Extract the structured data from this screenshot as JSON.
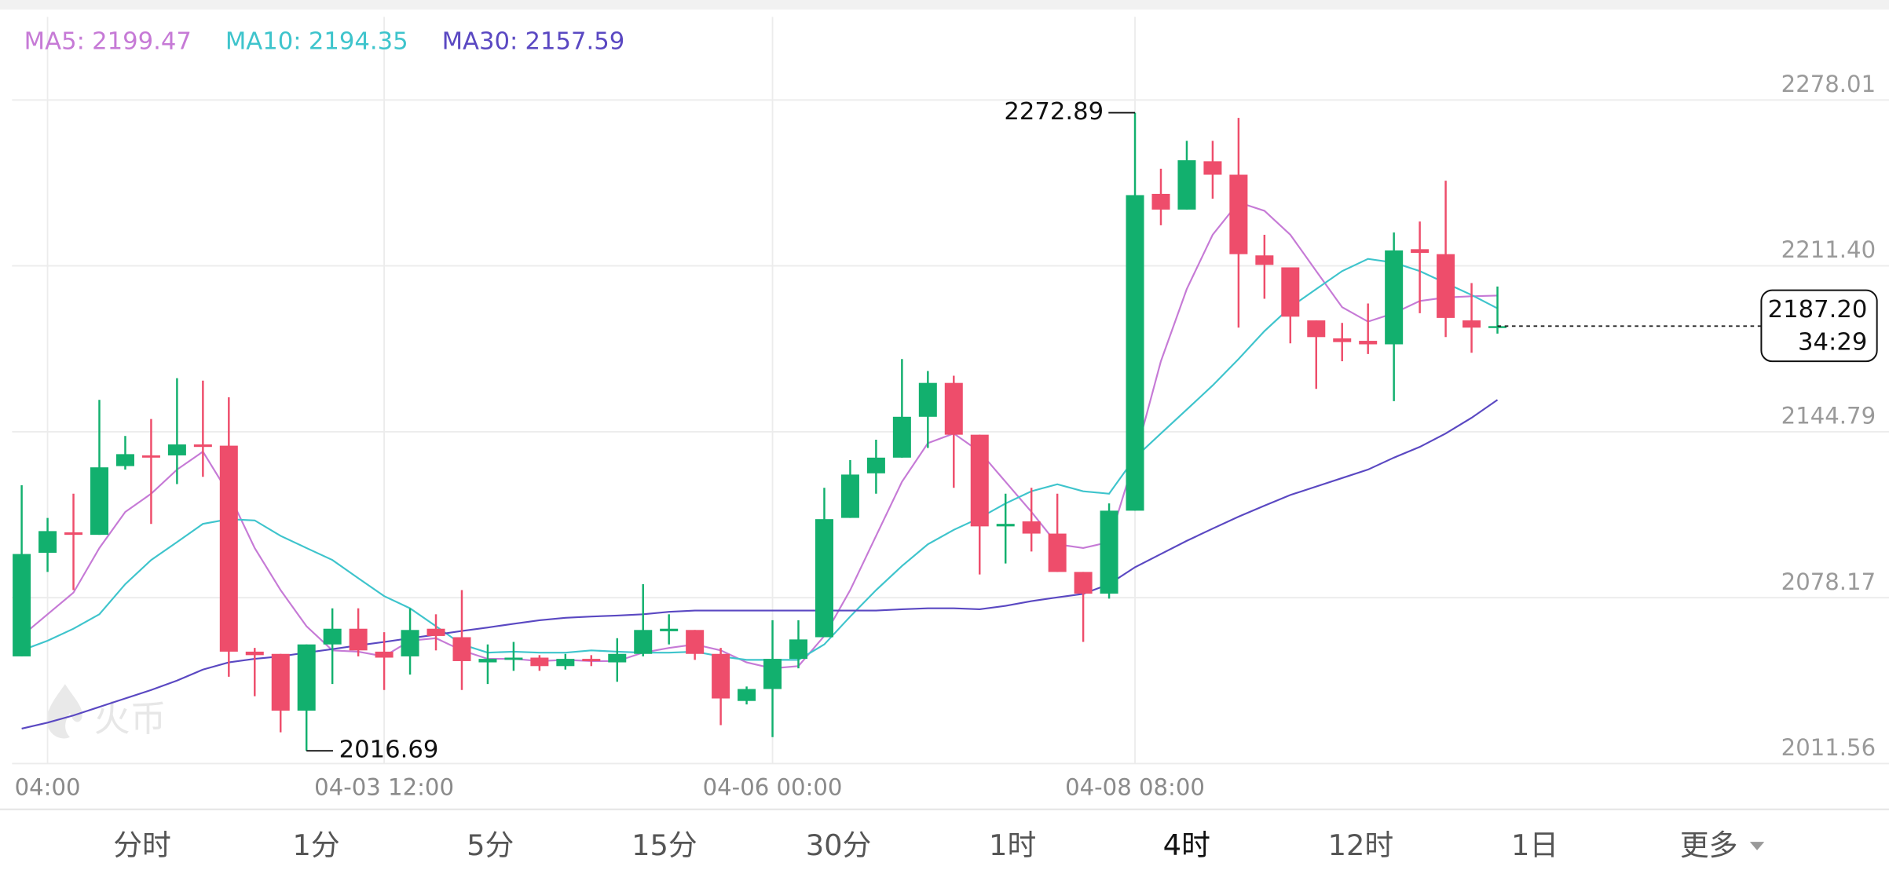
{
  "chart_data": {
    "type": "candlestick",
    "categories": [
      null,
      "04:00",
      null,
      null,
      null,
      null,
      null,
      null,
      null,
      null,
      null,
      null,
      null,
      null,
      "04-03 12:00",
      null,
      null,
      null,
      null,
      null,
      null,
      null,
      null,
      null,
      null,
      null,
      null,
      null,
      null,
      "04-06 00:00",
      null,
      null,
      null,
      null,
      null,
      null,
      null,
      null,
      null,
      null,
      null,
      null,
      null,
      "04-08 08:00",
      null,
      null,
      null,
      null,
      null,
      null,
      null,
      null,
      null,
      null,
      null,
      null,
      null,
      null
    ],
    "open": [
      2054.6,
      2096.2,
      2104.4,
      2103.4,
      2131.0,
      2135.3,
      2135.3,
      2139.7,
      2139.2,
      2056.5,
      2055.6,
      2032.8,
      2059.4,
      2065.7,
      2056.5,
      2054.6,
      2065.7,
      2062.3,
      2052.2,
      2053.2,
      2054.1,
      2050.7,
      2053.6,
      2052.2,
      2055.6,
      2064.7,
      2065.2,
      2055.6,
      2036.7,
      2041.5,
      2053.6,
      2062.3,
      2110.2,
      2128.1,
      2134.4,
      2150.8,
      2164.4,
      2143.6,
      2106.8,
      2108.8,
      2103.9,
      2088.5,
      2079.8,
      2113.1,
      2240.3,
      2234.0,
      2253.4,
      2248.0,
      2215.6,
      2210.8,
      2189.5,
      2182.3,
      2181.3,
      2179.9,
      2218.1,
      2216.1,
      2189.5,
      2186.6
    ],
    "high": [
      2123.3,
      2110.2,
      2119.9,
      2157.6,
      2143.1,
      2149.9,
      2166.3,
      2165.3,
      2158.6,
      2058.0,
      2055.6,
      2059.4,
      2073.9,
      2073.9,
      2064.3,
      2073.9,
      2071.5,
      2081.2,
      2059.4,
      2060.4,
      2055.1,
      2055.6,
      2055.1,
      2061.9,
      2083.6,
      2071.5,
      2065.2,
      2058.0,
      2042.5,
      2069.1,
      2069.1,
      2122.3,
      2133.4,
      2141.6,
      2174.0,
      2169.2,
      2167.3,
      2143.6,
      2119.9,
      2122.3,
      2119.9,
      2088.5,
      2116.0,
      2272.89,
      2250.4,
      2261.6,
      2261.6,
      2270.8,
      2223.9,
      2210.8,
      2189.5,
      2188.5,
      2196.3,
      2224.8,
      2229.2,
      2245.6,
      2204.5,
      2203.1
    ],
    "low": [
      2054.6,
      2088.5,
      2081.2,
      2103.4,
      2129.6,
      2107.8,
      2123.8,
      2126.7,
      2046.4,
      2038.6,
      2024.1,
      2016.69,
      2043.5,
      2054.6,
      2041.1,
      2047.3,
      2057.0,
      2041.1,
      2043.5,
      2048.8,
      2048.8,
      2049.3,
      2050.7,
      2044.4,
      2054.6,
      2059.4,
      2053.2,
      2027.0,
      2035.3,
      2022.2,
      2049.8,
      2062.3,
      2110.2,
      2119.9,
      2134.4,
      2138.3,
      2122.3,
      2087.5,
      2091.9,
      2096.7,
      2088.5,
      2060.4,
      2077.8,
      2113.1,
      2227.7,
      2234.0,
      2238.4,
      2186.6,
      2198.2,
      2180.3,
      2162.0,
      2173.1,
      2176.0,
      2157.1,
      2192.4,
      2182.8,
      2176.5,
      2184.2
    ],
    "close": [
      2095.7,
      2104.9,
      2103.4,
      2130.5,
      2135.8,
      2134.4,
      2139.7,
      2138.7,
      2056.5,
      2055.1,
      2032.8,
      2059.4,
      2065.7,
      2057.0,
      2054.1,
      2065.2,
      2062.8,
      2052.7,
      2053.6,
      2054.1,
      2050.7,
      2053.6,
      2052.7,
      2055.6,
      2065.2,
      2065.7,
      2055.6,
      2037.7,
      2041.5,
      2053.6,
      2061.4,
      2109.7,
      2127.6,
      2134.4,
      2150.8,
      2164.4,
      2143.6,
      2106.8,
      2107.8,
      2103.9,
      2088.5,
      2079.8,
      2113.1,
      2239.8,
      2234.0,
      2253.8,
      2248.0,
      2216.1,
      2211.8,
      2191.0,
      2182.8,
      2180.8,
      2179.9,
      2217.6,
      2216.6,
      2190.5,
      2186.6,
      2187.2
    ],
    "up_color": "#12b06e",
    "down_color": "#ee4d6b",
    "series": [
      {
        "name": "MA5:",
        "color": "#c67ad6",
        "values": [
          2062.8,
          2071.5,
          2080.2,
          2098.1,
          2112.6,
          2119.9,
          2129.6,
          2136.8,
          2119.9,
          2098.1,
          2081.2,
          2066.7,
          2057.0,
          2056.5,
          2054.6,
          2060.9,
          2061.9,
          2057.0,
          2053.6,
          2053.6,
          2052.7,
          2053.2,
          2052.7,
          2052.7,
          2056.1,
          2058.0,
          2059.4,
          2057.0,
          2052.2,
          2049.8,
          2050.7,
          2062.8,
          2081.2,
          2103.0,
          2124.7,
          2140.2,
          2144.1,
          2136.8,
          2124.7,
          2112.6,
          2099.6,
          2098.1,
          2100.5,
          2134.4,
          2173.1,
          2202.1,
          2223.9,
          2236.9,
          2233.5,
          2223.9,
          2209.3,
          2194.8,
          2189.0,
          2192.4,
          2197.3,
          2198.7,
          2199.2,
          2199.47
        ]
      },
      {
        "name": "MA10:",
        "color": "#3ec4cc",
        "values": [
          2057.0,
          2060.9,
          2065.7,
          2071.5,
          2083.6,
          2093.3,
          2100.5,
          2107.8,
          2109.7,
          2109.2,
          2103.0,
          2098.1,
          2093.3,
          2086.0,
          2078.8,
          2073.9,
          2066.7,
          2059.4,
          2056.1,
          2056.5,
          2056.1,
          2056.1,
          2057.0,
          2056.5,
          2056.1,
          2056.1,
          2056.5,
          2054.6,
          2053.2,
          2053.2,
          2053.2,
          2059.4,
          2070.6,
          2081.2,
          2090.9,
          2099.6,
          2105.4,
          2110.2,
          2116.0,
          2120.9,
          2123.7,
          2120.9,
          2119.9,
          2134.4,
          2144.1,
          2153.7,
          2163.4,
          2174.0,
          2185.2,
          2194.8,
          2202.1,
          2209.3,
          2214.2,
          2212.7,
          2209.3,
          2204.5,
          2199.7,
          2194.35
        ]
      },
      {
        "name": "MA30:",
        "color": "#5a48c2",
        "values": [
          2025.6,
          2028.0,
          2030.9,
          2034.3,
          2037.7,
          2041.1,
          2044.9,
          2049.3,
          2052.2,
          2053.6,
          2054.6,
          2056.1,
          2057.5,
          2059.0,
          2060.4,
          2061.9,
          2063.3,
          2064.8,
          2066.2,
          2067.7,
          2069.1,
          2070.1,
          2070.6,
          2071.0,
          2071.5,
          2072.5,
          2073.0,
          2073.0,
          2073.0,
          2073.0,
          2073.0,
          2073.0,
          2073.0,
          2073.0,
          2073.5,
          2073.9,
          2073.9,
          2073.5,
          2074.9,
          2076.8,
          2078.3,
          2079.7,
          2083.6,
          2090.4,
          2095.7,
          2101.0,
          2105.9,
          2110.7,
          2115.1,
          2119.4,
          2122.8,
          2126.2,
          2129.6,
          2134.4,
          2138.7,
          2144.1,
          2150.4,
          2157.59
        ]
      }
    ],
    "ylim": [
      2011.56,
      2278.01
    ],
    "yticks": [
      2011.56,
      2078.17,
      2144.79,
      {
        "value": 2211.4,
        "label": "2211.40"
      },
      2278.01
    ],
    "grid": true,
    "price_label": "2187.20",
    "countdown": "34:29"
  },
  "watermark": "火币",
  "tabs": {
    "items": [
      "分时",
      "1分",
      "5分",
      "15分",
      "30分",
      "1时",
      "4时",
      "12时",
      "1日",
      "更多"
    ],
    "active": 6
  }
}
